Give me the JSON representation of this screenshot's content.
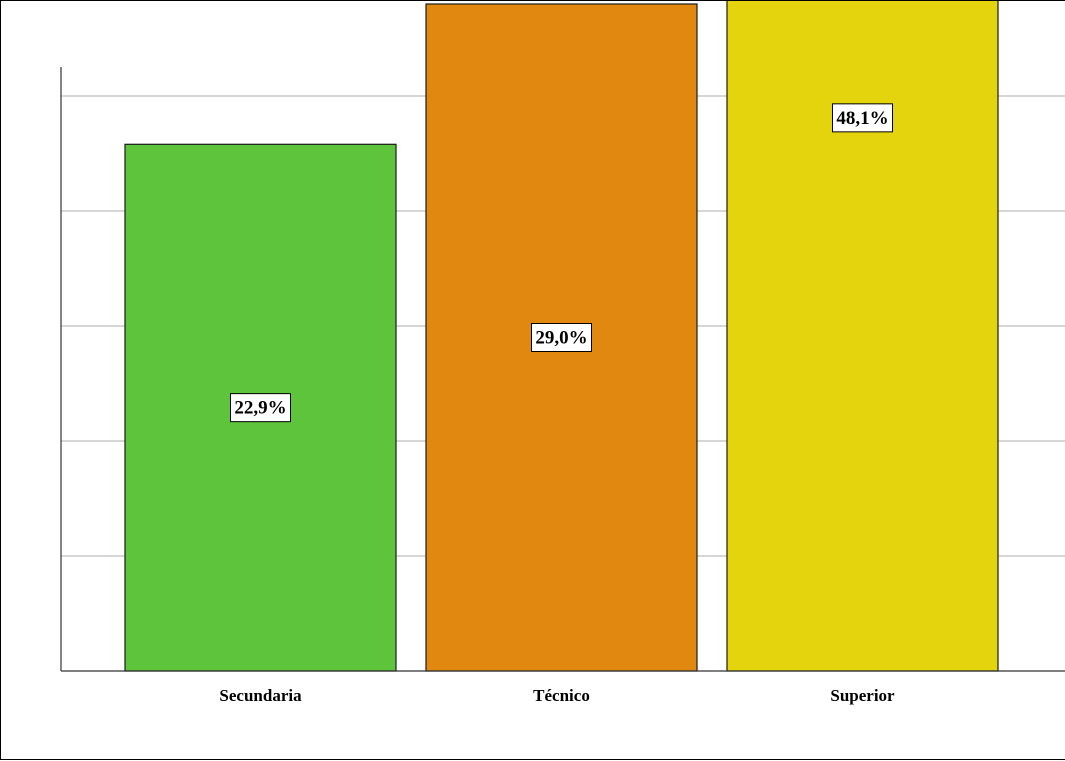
{
  "chart_data": {
    "type": "bar",
    "categories": [
      "Secundaria",
      "Técnico",
      "Superior"
    ],
    "values": [
      22.9,
      29.0,
      48.1
    ],
    "data_labels": [
      "22,9%",
      "29,0%",
      "48,1%"
    ],
    "colors": [
      "#5ec43c",
      "#e0880f",
      "#e3d40e"
    ],
    "ylim": [
      0,
      50
    ],
    "grid": true,
    "legend": "none"
  }
}
